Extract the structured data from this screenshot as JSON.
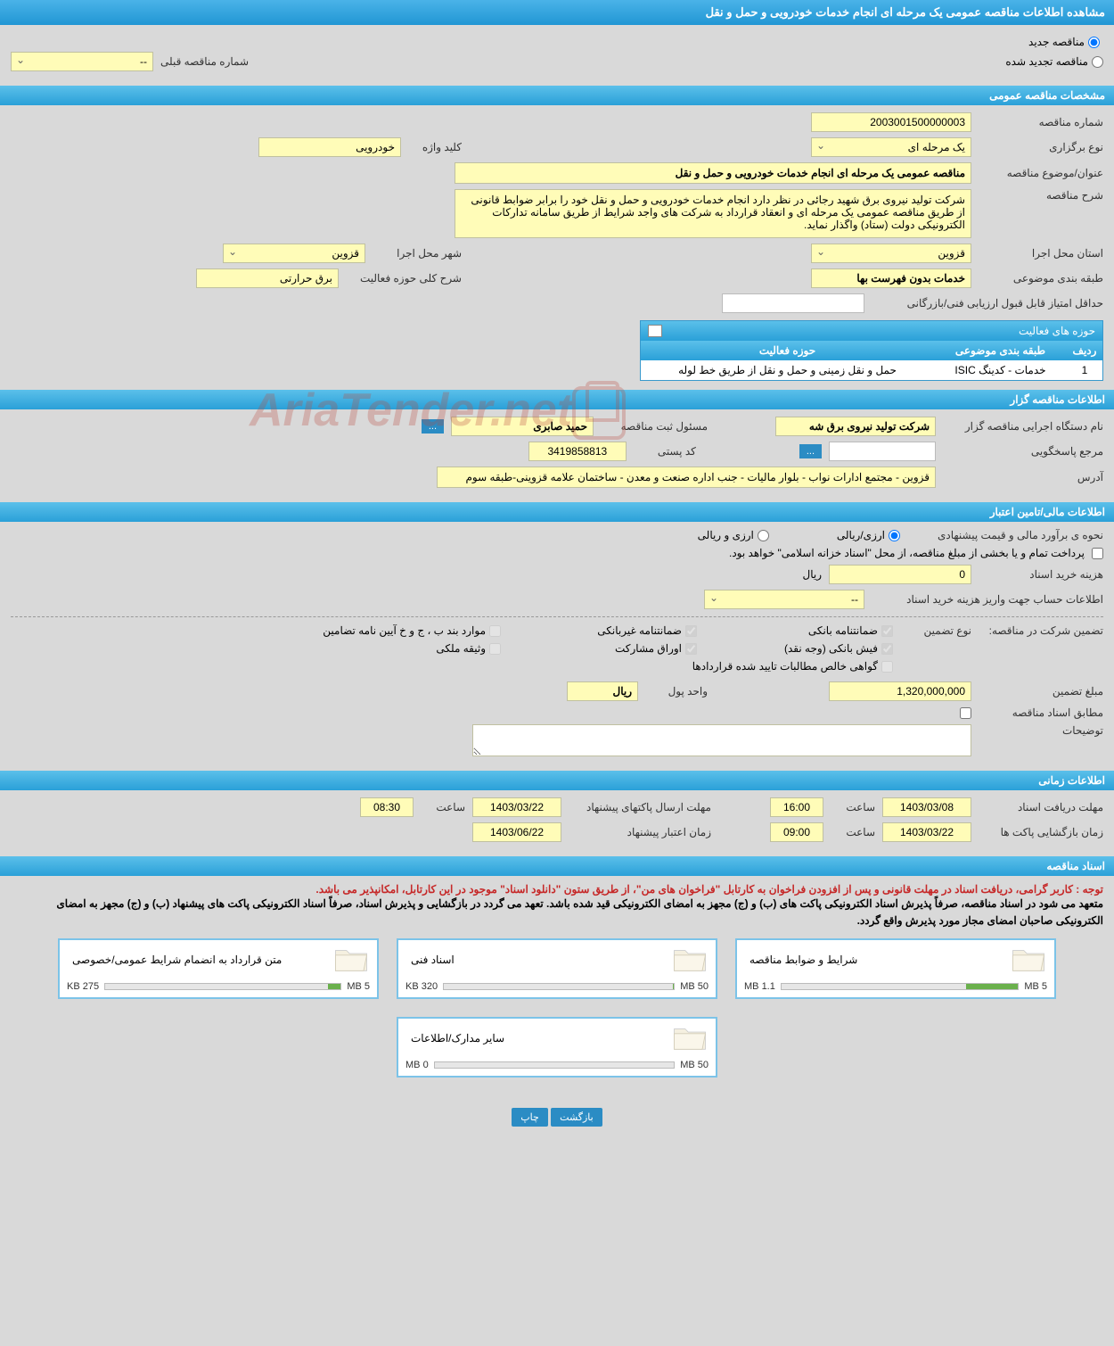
{
  "page_title": "مشاهده اطلاعات مناقصه عمومی یک مرحله ای انجام خدمات خودرویی و حمل و نقل",
  "status_radio": {
    "new": "مناقصه جدید",
    "renewed": "مناقصه تجدید شده"
  },
  "prev_number": {
    "label": "شماره مناقصه قبلی",
    "value": "--"
  },
  "sections": {
    "general": "مشخصات مناقصه عمومی",
    "activity_fields": "حوزه های فعالیت",
    "organizer": "اطلاعات مناقصه گزار",
    "financial": "اطلاعات مالی/تامین اعتبار",
    "timing": "اطلاعات زمانی",
    "documents": "اسناد مناقصه"
  },
  "general": {
    "tender_number_label": "شماره مناقصه",
    "tender_number": "2003001500000003",
    "type_label": "نوع برگزاری",
    "type": "یک مرحله ای",
    "keyword_label": "کلید واژه",
    "keyword": "خودرویی",
    "subject_label": "عنوان/موضوع مناقصه",
    "subject": "مناقصه عمومی یک مرحله ای انجام خدمات خودرویی و حمل و نقل",
    "desc_label": "شرح مناقصه",
    "desc": "شرکت تولید نیروی برق شهید رجائی در نظر دارد انجام خدمات خودرویی و حمل و نقل خود را  برابر ضوابط قانونی از طریق مناقصه عمومی یک مرحله ای  و انعقاد قرارداد به شرکت های واجد شرایط از طریق سامانه تدارکات الکترونیکی دولت (ستاد) واگذار نماید.",
    "province_label": "استان محل اجرا",
    "province": "قزوین",
    "city_label": "شهر محل اجرا",
    "city": "قزوین",
    "category_label": "طبقه بندی موضوعی",
    "category": "خدمات بدون فهرست بها",
    "activity_scope_label": "شرح کلی حوزه فعالیت",
    "activity_scope": "برق حرارتی",
    "min_score_label": "حداقل امتیاز قابل قبول ارزیابی فنی/بازرگانی",
    "min_score": ""
  },
  "activity_table": {
    "col_row": "ردیف",
    "col_category": "طبقه بندی موضوعی",
    "col_field": "حوزه فعالیت",
    "row1_num": "1",
    "row1_category": "خدمات - کدینگ ISIC",
    "row1_field": "حمل و نقل زمینی و حمل و نقل از طریق خط لوله"
  },
  "organizer": {
    "org_label": "نام دستگاه اجرایی مناقصه گزار",
    "org_name": "شرکت تولید نیروی برق شه",
    "responsible_label": "مسئول ثبت مناقصه",
    "responsible": "حمید صابری",
    "reference_label": "مرجع پاسخگویی",
    "reference": "",
    "postal_label": "کد پستی",
    "postal": "3419858813",
    "address_label": "آدرس",
    "address": "قزوین - مجتمع ادارات نواب - بلوار مالیات - جنب اداره صنعت و معدن - ساختمان علامه قزوینی-طبقه سوم",
    "ellipsis": "..."
  },
  "financial": {
    "estimate_label": "نحوه ی برآورد مالی و قیمت پیشنهادی",
    "currency_rial": "ارزی/ریالی",
    "currency_foreign": "ارزی و ریالی",
    "payment_note": "پرداخت تمام و یا بخشی از مبلغ مناقصه، از محل \"اسناد خزانه اسلامی\" خواهد بود.",
    "doc_cost_label": "هزینه خرید اسناد",
    "doc_cost": "0",
    "rial_unit": "ریال",
    "account_label": "اطلاعات حساب جهت واریز هزینه خرید اسناد",
    "account_value": "--",
    "guarantee_label": "تضمین شرکت در مناقصه:",
    "guarantee_type_label": "نوع تضمین",
    "guarantee_types": {
      "bank_guarantee": "ضمانتنامه بانکی",
      "nonbank_guarantee": "ضمانتنامه غیربانکی",
      "regulation_cases": "موارد بند ب ، ج و خ آیین نامه تضامین",
      "bank_slip": "فیش بانکی (وجه نقد)",
      "participation_bonds": "اوراق مشارکت",
      "property_pledge": "وثیقه ملکی",
      "net_receivables": "گواهی خالص مطالبات تایید شده قراردادها"
    },
    "guarantee_amount_label": "مبلغ تضمین",
    "guarantee_amount": "1,320,000,000",
    "currency_unit_label": "واحد پول",
    "currency_unit": "ریال",
    "per_docs_label": "مطابق اسناد مناقصه",
    "notes_label": "توضیحات",
    "notes": ""
  },
  "timing": {
    "receive_deadline_label": "مهلت دریافت اسناد",
    "receive_deadline_date": "1403/03/08",
    "time_label": "ساعت",
    "receive_deadline_time": "16:00",
    "submit_deadline_label": "مهلت ارسال پاکتهای پیشنهاد",
    "submit_deadline_date": "1403/03/22",
    "submit_deadline_time": "08:30",
    "opening_label": "زمان بازگشایی پاکت ها",
    "opening_date": "1403/03/22",
    "opening_time": "09:00",
    "validity_label": "زمان اعتبار پیشنهاد",
    "validity_date": "1403/06/22"
  },
  "documents": {
    "note_red": "توجه : کاربر گرامی، دریافت اسناد در مهلت قانونی و پس از افزودن فراخوان به کارتابل \"فراخوان های من\"، از طریق ستون \"دانلود اسناد\" موجود در این کارتابل، امکانپذیر می باشد.",
    "note_black": "متعهد می شود در اسناد مناقصه، صرفاً پذیرش اسناد الکترونیکی پاکت های (ب) و (ج) مجهز به امضای الکترونیکی قید شده باشد. تعهد می گردد در بازگشایی و پذیرش اسناد، صرفاً اسناد الکترونیکی پاکت های پیشنهاد (ب) و (ج) مجهز به امضای الکترونیکی صاحبان امضای مجاز مورد پذیرش واقع گردد.",
    "cards": [
      {
        "title": "شرایط و ضوابط مناقصه",
        "used": "1.1 MB",
        "total": "5 MB",
        "pct": 22
      },
      {
        "title": "اسناد فنی",
        "used": "320 KB",
        "total": "50 MB",
        "pct": 0.6
      },
      {
        "title": "متن قرارداد به انضمام شرایط عمومی/خصوصی",
        "used": "275 KB",
        "total": "5 MB",
        "pct": 5.5
      },
      {
        "title": "سایر مدارک/اطلاعات",
        "used": "0 MB",
        "total": "50 MB",
        "pct": 0
      }
    ]
  },
  "footer": {
    "back": "بازگشت",
    "print": "چاپ"
  },
  "watermark": "AriaTender.net"
}
